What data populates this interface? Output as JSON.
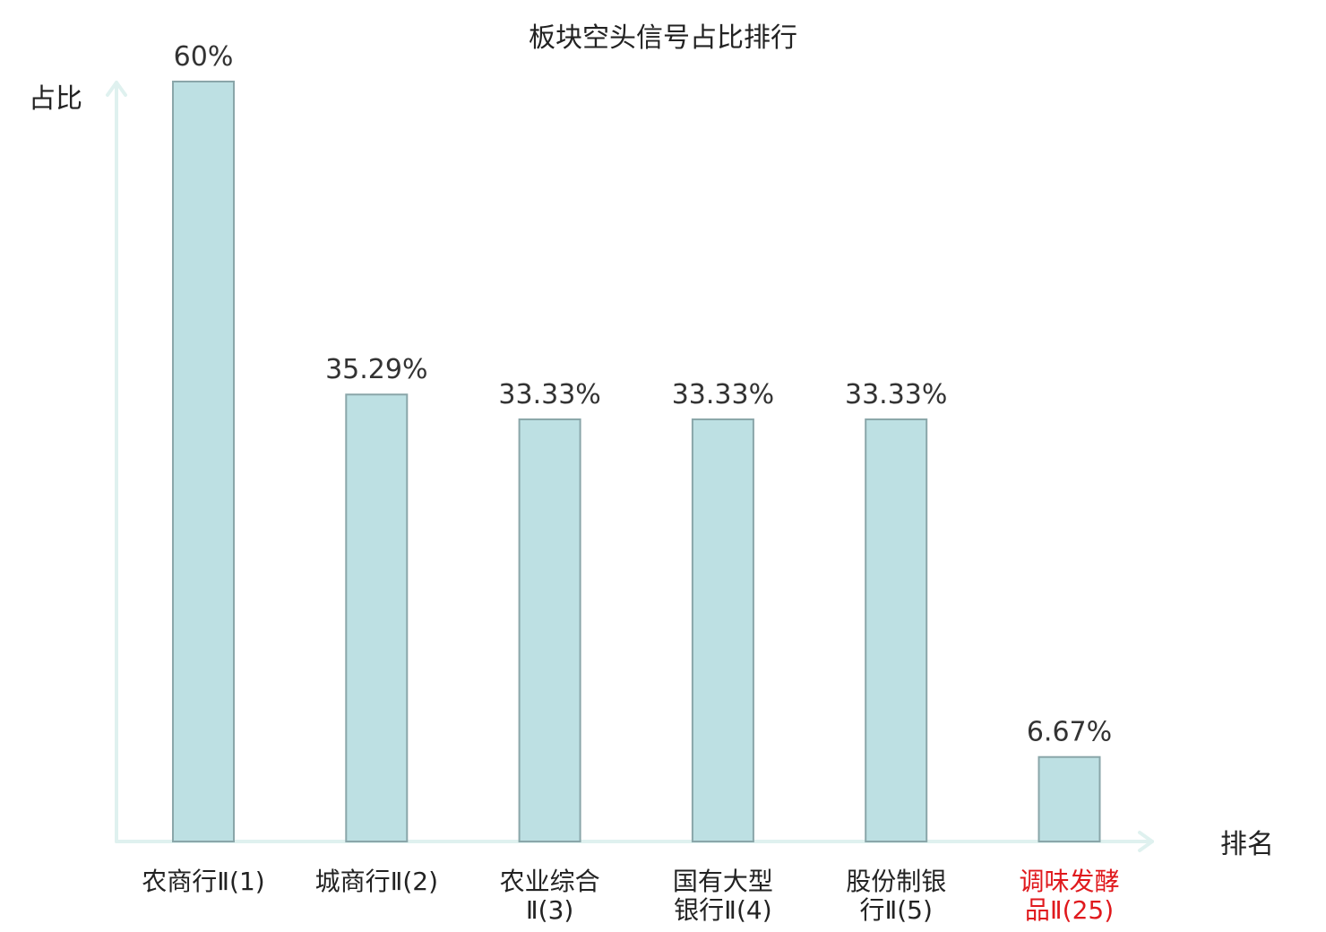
{
  "chart_data": {
    "type": "bar",
    "title": "板块空头信号占比排行",
    "ylabel": "占比",
    "xlabel": "排名",
    "ylim": [
      0,
      60
    ],
    "grid": false,
    "categories": [
      [
        "农商行Ⅱ(1)"
      ],
      [
        "城商行Ⅱ(2)"
      ],
      [
        "农业综合",
        "Ⅱ(3)"
      ],
      [
        "国有大型",
        "银行Ⅱ(4)"
      ],
      [
        "股份制银",
        "行Ⅱ(5)"
      ],
      [
        "调味发酵",
        "品Ⅱ(25)"
      ]
    ],
    "values": [
      60,
      35.29,
      33.33,
      33.33,
      33.33,
      6.67
    ],
    "value_labels": [
      "60%",
      "35.29%",
      "33.33%",
      "33.33%",
      "33.33%",
      "6.67%"
    ],
    "highlight_index": 5,
    "colors": {
      "bar_fill": "#bde0e3",
      "bar_stroke": "#8aa6a9",
      "axis": "#dff1ef",
      "text": "#222222",
      "highlight_text": "#e0191d"
    }
  }
}
